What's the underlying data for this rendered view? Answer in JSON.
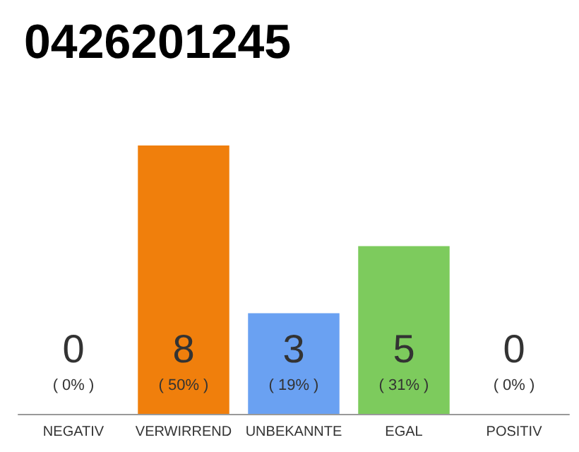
{
  "chart_data": {
    "type": "bar",
    "title": "0426201245",
    "categories": [
      "NEGATIV",
      "VERWIRREND",
      "UNBEKANNTE",
      "EGAL",
      "POSITIV"
    ],
    "values": [
      0,
      8,
      3,
      5,
      0
    ],
    "colors": [
      "#eeeeee",
      "#f07f0c",
      "#6aa1f2",
      "#7dcb5d",
      "#eeeeee"
    ],
    "value_labels": [
      "0\n( 0% )",
      "8\n( 50% )",
      "3\n( 19% )",
      "5\n( 31% )",
      "0\n( 0% )"
    ]
  }
}
